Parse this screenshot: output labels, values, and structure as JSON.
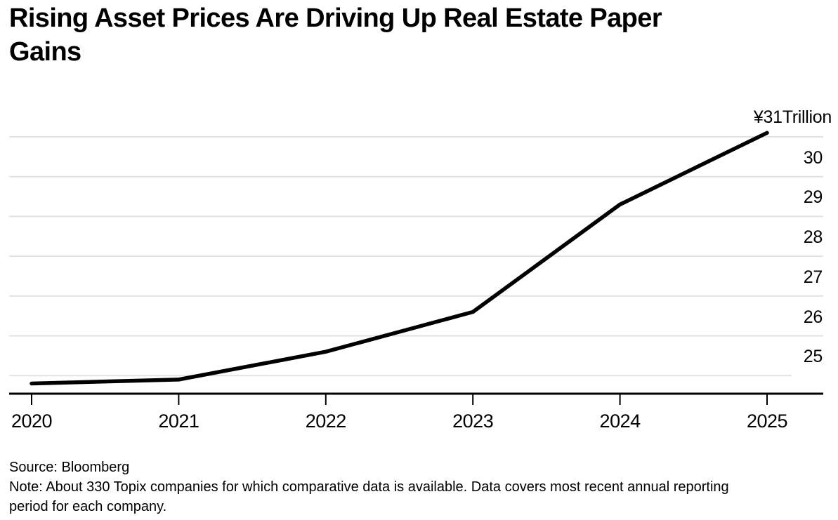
{
  "title": "Rising Asset Prices Are Driving Up Real Estate Paper Gains",
  "footer": {
    "source": "Source: Bloomberg",
    "note": "Note: About 330 Topix companies for which comparative data is available. Data covers most recent annual reporting period for each company."
  },
  "chart_data": {
    "type": "line",
    "title": "Rising Asset Prices Are Driving Up Real Estate Paper Gains",
    "x": [
      2020,
      2021,
      2022,
      2023,
      2024,
      2025
    ],
    "x_tick_labels": [
      "2020",
      "2021",
      "2022",
      "2023",
      "2024",
      "2025"
    ],
    "values": [
      24.8,
      24.9,
      25.6,
      26.6,
      29.3,
      31.1
    ],
    "end_label": "¥31Trillion",
    "y_gridline_values": [
      31,
      30,
      29,
      28,
      27,
      26,
      25
    ],
    "y_tick_labels": [
      "30",
      "29",
      "28",
      "27",
      "26",
      "25"
    ],
    "y_tick_values": [
      30,
      29,
      28,
      27,
      26,
      25
    ],
    "ylim": [
      24.4,
      31.4
    ],
    "xlim": [
      2020,
      2025
    ],
    "grid": "horizontal",
    "legend": "none",
    "colors": {
      "line": "#000000",
      "grid": "#e2e2e2",
      "axis": "#000000",
      "text": "#000000",
      "background": "#ffffff"
    }
  }
}
